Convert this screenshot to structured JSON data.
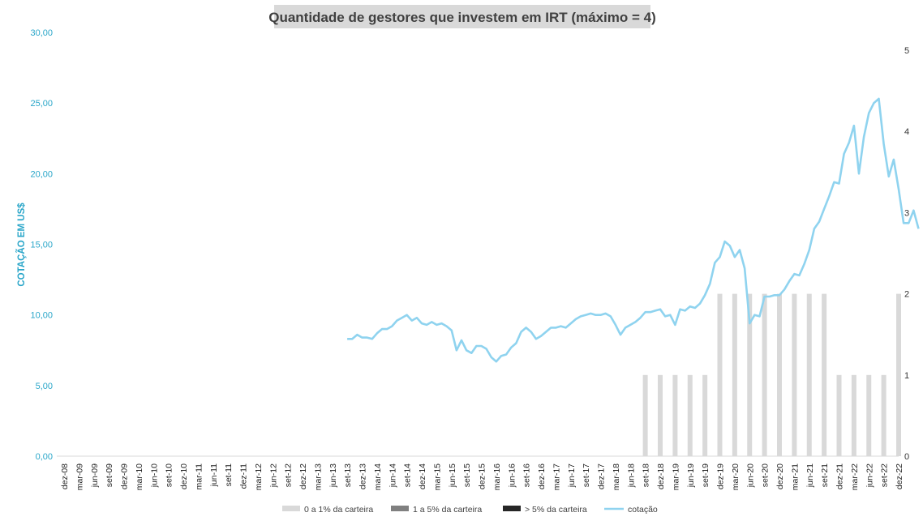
{
  "chart_data": {
    "type": "bar+line",
    "title": "Quantidade de gestores que investem em IRT (máximo = 4)",
    "ylabel_left": "COTAÇÃO EM US$",
    "ylim_left": [
      0,
      30
    ],
    "yticks_left": [
      "0,00",
      "5,00",
      "10,00",
      "15,00",
      "20,00",
      "25,00",
      "30,00"
    ],
    "ylim_right": [
      0,
      5
    ],
    "yticks_right": [
      "0",
      "1",
      "2",
      "3",
      "4",
      "5"
    ],
    "x_tick_labels": [
      "dez-08",
      "mar-09",
      "jun-09",
      "set-09",
      "dez-09",
      "mar-10",
      "jun-10",
      "set-10",
      "dez-10",
      "mar-11",
      "jun-11",
      "set-11",
      "dez-11",
      "mar-12",
      "jun-12",
      "set-12",
      "dez-12",
      "mar-13",
      "jun-13",
      "set-13",
      "dez-13",
      "mar-14",
      "jun-14",
      "set-14",
      "dez-14",
      "mar-15",
      "jun-15",
      "set-15",
      "dez-15",
      "mar-16",
      "jun-16",
      "set-16",
      "dez-16",
      "mar-17",
      "jun-17",
      "set-17",
      "dez-17",
      "mar-18",
      "jun-18",
      "set-18",
      "dez-18",
      "mar-19",
      "jun-19",
      "set-19",
      "dez-19",
      "mar-20",
      "jun-20",
      "set-20",
      "dez-20",
      "mar-21",
      "jun-21",
      "set-21",
      "dez-21",
      "mar-22",
      "jun-22",
      "set-22",
      "dez-22"
    ],
    "bars": {
      "name": "0 a 1% da carteira",
      "color": "#d9d9d9",
      "categories": [
        "set-18",
        "dez-18",
        "mar-19",
        "jun-19",
        "set-19",
        "dez-19",
        "mar-20",
        "jun-20",
        "set-20",
        "dez-20",
        "mar-21",
        "jun-21",
        "set-21",
        "dez-21",
        "mar-22",
        "jun-22",
        "set-22",
        "dez-22"
      ],
      "values": [
        1,
        1,
        1,
        1,
        1,
        2,
        2,
        2,
        2,
        2,
        2,
        2,
        2,
        1,
        1,
        1,
        1,
        2
      ]
    },
    "legend": [
      {
        "name": "0 a 1% da carteira",
        "color": "#d9d9d9",
        "kind": "bar"
      },
      {
        "name": "1 a 5% da carteira",
        "color": "#808080",
        "kind": "bar"
      },
      {
        "name": "> 5% da carteira",
        "color": "#262626",
        "kind": "bar"
      },
      {
        "name": "cotação",
        "color": "#8fd3ef",
        "kind": "line"
      }
    ],
    "line": {
      "name": "cotação",
      "color": "#8fd3ef",
      "x_start_month_index": 57,
      "values": [
        8.3,
        8.3,
        8.6,
        8.4,
        8.4,
        8.3,
        8.7,
        9.0,
        9.0,
        9.2,
        9.6,
        9.8,
        10.0,
        9.6,
        9.8,
        9.4,
        9.3,
        9.5,
        9.3,
        9.4,
        9.2,
        8.9,
        7.5,
        8.2,
        7.5,
        7.3,
        7.8,
        7.8,
        7.6,
        7.0,
        6.7,
        7.1,
        7.2,
        7.7,
        8.0,
        8.8,
        9.1,
        8.8,
        8.3,
        8.5,
        8.8,
        9.1,
        9.1,
        9.2,
        9.1,
        9.4,
        9.7,
        9.9,
        10.0,
        10.1,
        10.0,
        10.0,
        10.1,
        9.9,
        9.3,
        8.6,
        9.1,
        9.3,
        9.5,
        9.8,
        10.2,
        10.2,
        10.3,
        10.4,
        9.9,
        10.0,
        9.3,
        10.4,
        10.3,
        10.6,
        10.5,
        10.8,
        11.4,
        12.2,
        13.7,
        14.1,
        15.2,
        14.9,
        14.1,
        14.6,
        13.3,
        9.4,
        10.0,
        9.9,
        11.3,
        11.3,
        11.4,
        11.4,
        11.8,
        12.4,
        12.9,
        12.8,
        13.6,
        14.6,
        16.1,
        16.6,
        17.5,
        18.4,
        19.4,
        19.3,
        21.4,
        22.2,
        23.4,
        20.0,
        22.6,
        24.3,
        25.0,
        25.3,
        22.1,
        19.8,
        21.0,
        18.9,
        16.5,
        16.5,
        17.4,
        16.1
      ]
    },
    "legend_position": "bottom",
    "grid": false
  }
}
